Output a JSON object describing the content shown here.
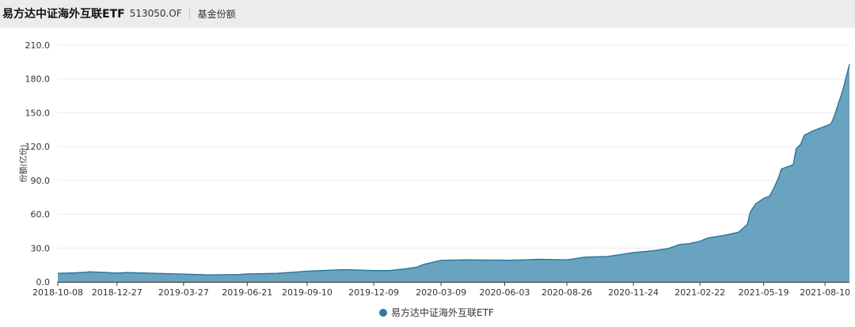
{
  "header": {
    "fund_name": "易方达中证海外互联ETF",
    "fund_code": "513050.OF",
    "tab_label": "基金份额"
  },
  "colors": {
    "area_fill": "#6aa3c0",
    "area_line": "#2f7a9e",
    "grid": "#ececec"
  },
  "chart_data": {
    "type": "area",
    "title": "",
    "ylabel": "份额(亿份)",
    "ylim": [
      0,
      210
    ],
    "yticks": [
      "0.0",
      "30.0",
      "60.0",
      "90.0",
      "120.0",
      "150.0",
      "180.0",
      "210.0"
    ],
    "xticks": [
      "2018-10-08",
      "2018-12-27",
      "2019-03-27",
      "2019-06-21",
      "2019-09-10",
      "2019-12-09",
      "2020-03-09",
      "2020-06-03",
      "2020-08-26",
      "2020-11-24",
      "2021-02-22",
      "2021-05-19",
      "2021-08-10"
    ],
    "legend": {
      "label": "易方达中证海外互联ETF",
      "placement": "bottom-center"
    },
    "grid": true,
    "series": [
      {
        "name": "易方达中证海外互联ETF",
        "points": [
          [
            "2018-10-08",
            7.5
          ],
          [
            "2018-10-31",
            8.0
          ],
          [
            "2018-11-15",
            8.5
          ],
          [
            "2018-11-20",
            8.9
          ],
          [
            "2018-12-27",
            7.8
          ],
          [
            "2019-01-10",
            8.2
          ],
          [
            "2019-03-27",
            6.8
          ],
          [
            "2019-05-01",
            6.2
          ],
          [
            "2019-06-10",
            6.5
          ],
          [
            "2019-06-21",
            7.0
          ],
          [
            "2019-08-01",
            7.5
          ],
          [
            "2019-09-10",
            9.5
          ],
          [
            "2019-10-15",
            10.5
          ],
          [
            "2019-11-01",
            10.8
          ],
          [
            "2019-12-09",
            10.0
          ],
          [
            "2019-12-30",
            10.0
          ],
          [
            "2020-01-20",
            11.5
          ],
          [
            "2020-02-05",
            13.0
          ],
          [
            "2020-02-15",
            15.5
          ],
          [
            "2020-03-09",
            19.0
          ],
          [
            "2020-04-10",
            19.5
          ],
          [
            "2020-06-03",
            19.2
          ],
          [
            "2020-07-01",
            19.5
          ],
          [
            "2020-07-20",
            20.0
          ],
          [
            "2020-08-26",
            19.5
          ],
          [
            "2020-09-20",
            22.0
          ],
          [
            "2020-10-20",
            22.5
          ],
          [
            "2020-11-10",
            24.5
          ],
          [
            "2020-11-24",
            26.0
          ],
          [
            "2020-12-20",
            27.5
          ],
          [
            "2021-01-10",
            29.5
          ],
          [
            "2021-01-25",
            33.0
          ],
          [
            "2021-02-08",
            34.0
          ],
          [
            "2021-02-22",
            36.0
          ],
          [
            "2021-03-05",
            39.0
          ],
          [
            "2021-03-25",
            41.0
          ],
          [
            "2021-04-15",
            44.0
          ],
          [
            "2021-04-27",
            51.0
          ],
          [
            "2021-05-01",
            62.0
          ],
          [
            "2021-05-08",
            69.0
          ],
          [
            "2021-05-19",
            74.0
          ],
          [
            "2021-05-27",
            76.0
          ],
          [
            "2021-06-01",
            82.0
          ],
          [
            "2021-06-08",
            92.0
          ],
          [
            "2021-06-12",
            100.0
          ],
          [
            "2021-06-28",
            104.0
          ],
          [
            "2021-07-02",
            118.0
          ],
          [
            "2021-07-08",
            122.0
          ],
          [
            "2021-07-13",
            130.0
          ],
          [
            "2021-07-25",
            134.0
          ],
          [
            "2021-08-10",
            138.0
          ],
          [
            "2021-08-18",
            140.0
          ],
          [
            "2021-08-22",
            146.0
          ],
          [
            "2021-08-28",
            158.0
          ],
          [
            "2021-09-03",
            170.0
          ],
          [
            "2021-09-12",
            193.0
          ]
        ]
      }
    ]
  }
}
